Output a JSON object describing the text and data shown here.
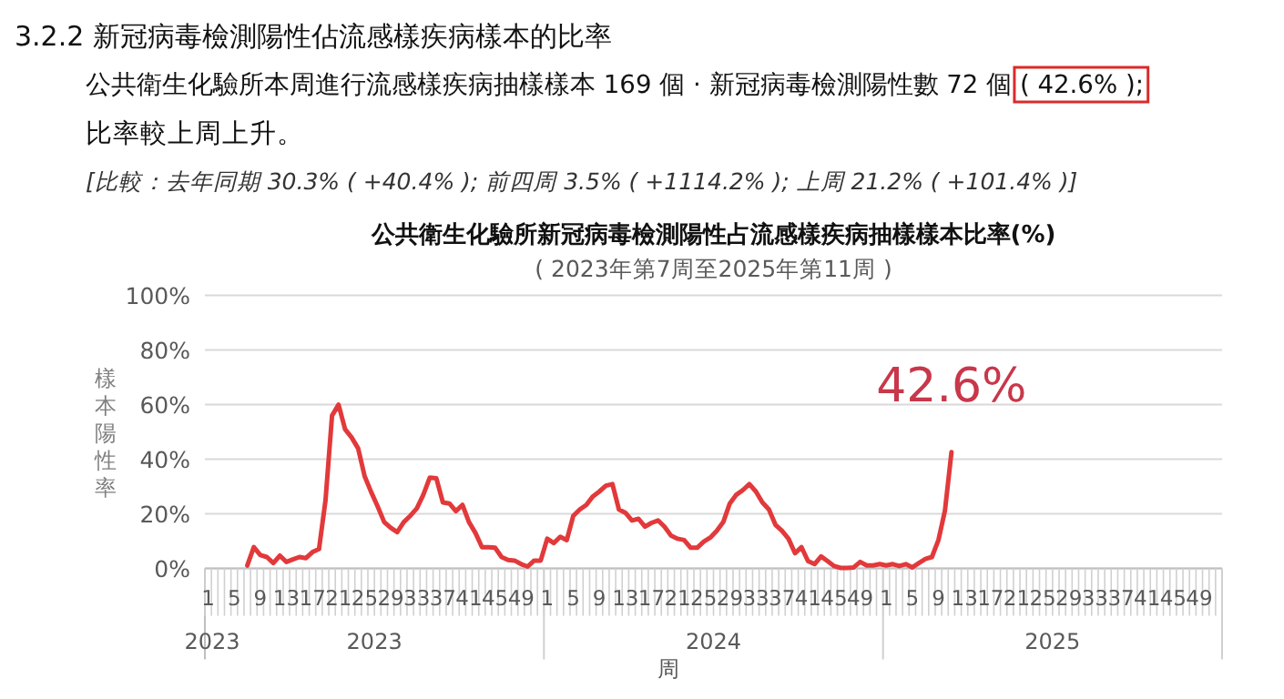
{
  "chart_data": {
    "type": "line",
    "title": "公共衛生化驗所新冠病毒檢測陽性占流感樣疾病抽樣樣本比率(%)",
    "subtitle": "( 2023年第7周至2025年第11周 )",
    "xlabel": "周",
    "ylabel": "樣本陽性率",
    "annotations": [
      "3.2.2 新冠病毒檢測陽性佔流感樣疾病樣本的比率",
      "公共衛生化驗所本周進行流感樣疾病抽樣樣本 169 個 · 新冠病毒檢測陽性數 72 個 ( 42.6% );",
      "比率較上周上升。",
      "[比較：去年同期 30.3% ( +40.4% ); 前四周 3.5% ( +1114.2% ); 上周 21.2% ( +101.4% )]",
      {
        "text": "42.6%",
        "y": 42.6
      },
      "2023",
      "2023",
      "2024",
      "2025"
    ],
    "categories": [
      "1",
      null,
      null,
      null,
      "5",
      null,
      null,
      null,
      "9",
      null,
      null,
      null,
      "13",
      null,
      null,
      null,
      "17",
      null,
      null,
      null,
      "21",
      null,
      null,
      null,
      "25",
      null,
      null,
      null,
      "29",
      null,
      null,
      null,
      "33",
      null,
      null,
      null,
      "37",
      null,
      null,
      null,
      "41",
      null,
      null,
      null,
      "45",
      null,
      null,
      null,
      "49",
      null,
      null,
      null,
      "1",
      null,
      null,
      null,
      "5",
      null,
      null,
      null,
      "9",
      null,
      null,
      null,
      "13",
      null,
      null,
      null,
      "17",
      null,
      null,
      null,
      "21",
      null,
      null,
      null,
      "25",
      null,
      null,
      null,
      "29",
      null,
      null,
      null,
      "33",
      null,
      null,
      null,
      "37",
      null,
      null,
      null,
      "41",
      null,
      null,
      null,
      "45",
      null,
      null,
      null,
      "49",
      null,
      null,
      null,
      "1",
      null,
      null,
      null,
      "5",
      null,
      null,
      null,
      "9",
      null,
      null,
      null,
      "13",
      null,
      null,
      null,
      "17",
      null,
      null,
      null,
      "21",
      null,
      null,
      null,
      "25",
      null,
      null,
      null,
      "29",
      null,
      null,
      null,
      "33",
      null,
      null,
      null,
      "37",
      null,
      null,
      null,
      "41",
      null,
      null,
      null,
      "45",
      null,
      null,
      null,
      "49",
      null,
      null,
      null
    ],
    "series": [
      {
        "color": "#e2393b",
        "values": [
          null,
          null,
          null,
          null,
          null,
          null,
          1.1,
          7.8,
          4.9,
          4.2,
          2,
          4.7,
          2.4,
          3.3,
          4.2,
          3.8,
          6,
          7.1,
          25,
          56,
          60,
          51,
          48,
          44,
          33.8,
          28,
          22.7,
          17,
          14.9,
          13.3,
          17,
          19.3,
          22,
          27,
          33.3,
          33,
          24.2,
          23.8,
          21,
          23.3,
          17,
          13,
          7.8,
          7.8,
          7.6,
          4.2,
          3.1,
          2.9,
          1.6,
          0.7,
          2.9,
          2.9,
          10.9,
          9.3,
          11.6,
          10.4,
          19.3,
          21.6,
          23.3,
          26.4,
          28.2,
          30.3,
          30.9,
          21.6,
          20.4,
          17.6,
          18.2,
          15.3,
          16.7,
          17.6,
          15.3,
          12,
          10.9,
          10.4,
          7.6,
          7.6,
          9.8,
          11.3,
          13.8,
          17,
          23.8,
          27,
          28.7,
          30.9,
          28.2,
          24.2,
          21.6,
          16,
          13.8,
          10.9,
          5.6,
          7.8,
          2.7,
          1.6,
          4.4,
          2.7,
          0.9,
          0.2,
          0.2,
          0.4,
          2.4,
          1.1,
          1.1,
          1.6,
          1.1,
          1.6,
          0.9,
          1.6,
          0.4,
          2,
          3.5,
          4.2,
          10.4,
          21.2,
          42.6,
          null,
          null,
          null,
          null,
          null,
          null,
          null,
          null,
          null,
          null,
          null,
          null,
          null,
          null,
          null,
          null,
          null,
          null,
          null,
          null,
          null,
          null,
          null,
          null,
          null,
          null,
          null,
          null,
          null,
          null,
          null,
          null,
          null,
          null,
          null,
          null,
          null,
          null,
          null,
          null,
          null
        ]
      }
    ],
    "ylim": [
      0,
      100
    ],
    "yticks": [
      {
        "value": 0,
        "label": "0%"
      },
      {
        "value": 20,
        "label": "20%"
      },
      {
        "value": 40,
        "label": "40%"
      },
      {
        "value": 60,
        "label": "60%"
      },
      {
        "value": 80,
        "label": "80%"
      },
      {
        "value": 100,
        "label": "100%"
      }
    ],
    "grid": "y",
    "marker": "none",
    "line_style": "solid"
  }
}
